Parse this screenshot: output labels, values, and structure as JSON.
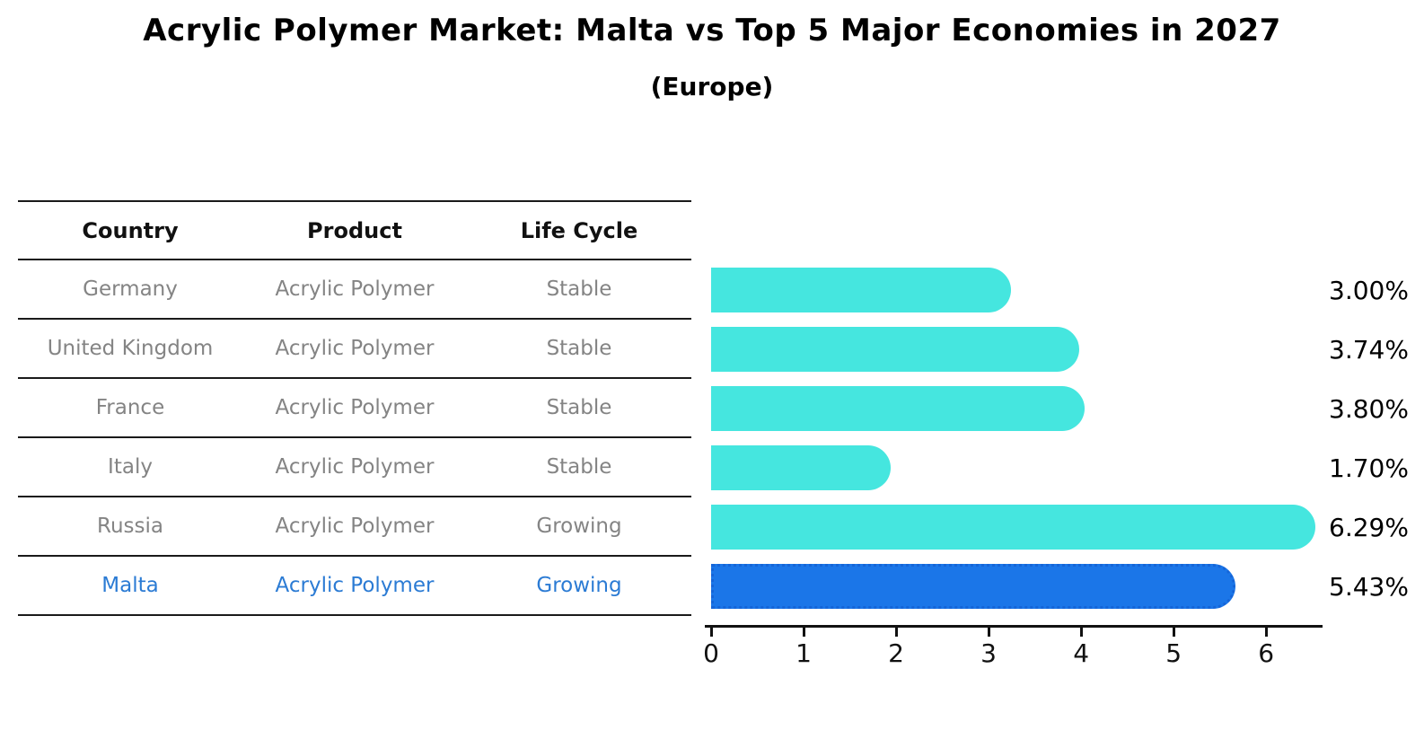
{
  "header": {
    "title": "Acrylic Polymer Market: Malta vs Top 5 Major Economies in 2027",
    "subtitle": "(Europe)"
  },
  "table": {
    "columns": [
      "Country",
      "Product",
      "Life Cycle"
    ],
    "rows": [
      {
        "country": "Germany",
        "product": "Acrylic Polymer",
        "life_cycle": "Stable",
        "highlighted": false
      },
      {
        "country": "United Kingdom",
        "product": "Acrylic Polymer",
        "life_cycle": "Stable",
        "highlighted": false
      },
      {
        "country": "France",
        "product": "Acrylic Polymer",
        "life_cycle": "Stable",
        "highlighted": false
      },
      {
        "country": "Italy",
        "product": "Acrylic Polymer",
        "life_cycle": "Stable",
        "highlighted": false
      },
      {
        "country": "Russia",
        "product": "Acrylic Polymer",
        "life_cycle": "Growing",
        "highlighted": false
      },
      {
        "country": "Malta",
        "product": "Acrylic Polymer",
        "life_cycle": "Growing",
        "highlighted": true
      }
    ]
  },
  "chart_data": {
    "type": "bar",
    "orientation": "horizontal",
    "title": "Acrylic Polymer Market: Malta vs Top 5 Major Economies in 2027",
    "subtitle": "(Europe)",
    "categories": [
      "Germany",
      "United Kingdom",
      "France",
      "Italy",
      "Russia",
      "Malta"
    ],
    "values": [
      3.0,
      3.74,
      3.8,
      1.7,
      6.29,
      5.43
    ],
    "value_labels": [
      "3.00%",
      "3.74%",
      "3.80%",
      "1.70%",
      "6.29%",
      "5.43%"
    ],
    "highlight_index": 5,
    "xlabel": "",
    "ylabel": "",
    "xlim": [
      0,
      6.6
    ],
    "x_ticks": [
      0,
      1,
      2,
      3,
      4,
      5,
      6
    ],
    "grid": false,
    "legend": "none",
    "bar_color": "#45e6df",
    "highlight_bar_color": "#1b76e8",
    "highlight_text_color": "#2b7bd4"
  }
}
